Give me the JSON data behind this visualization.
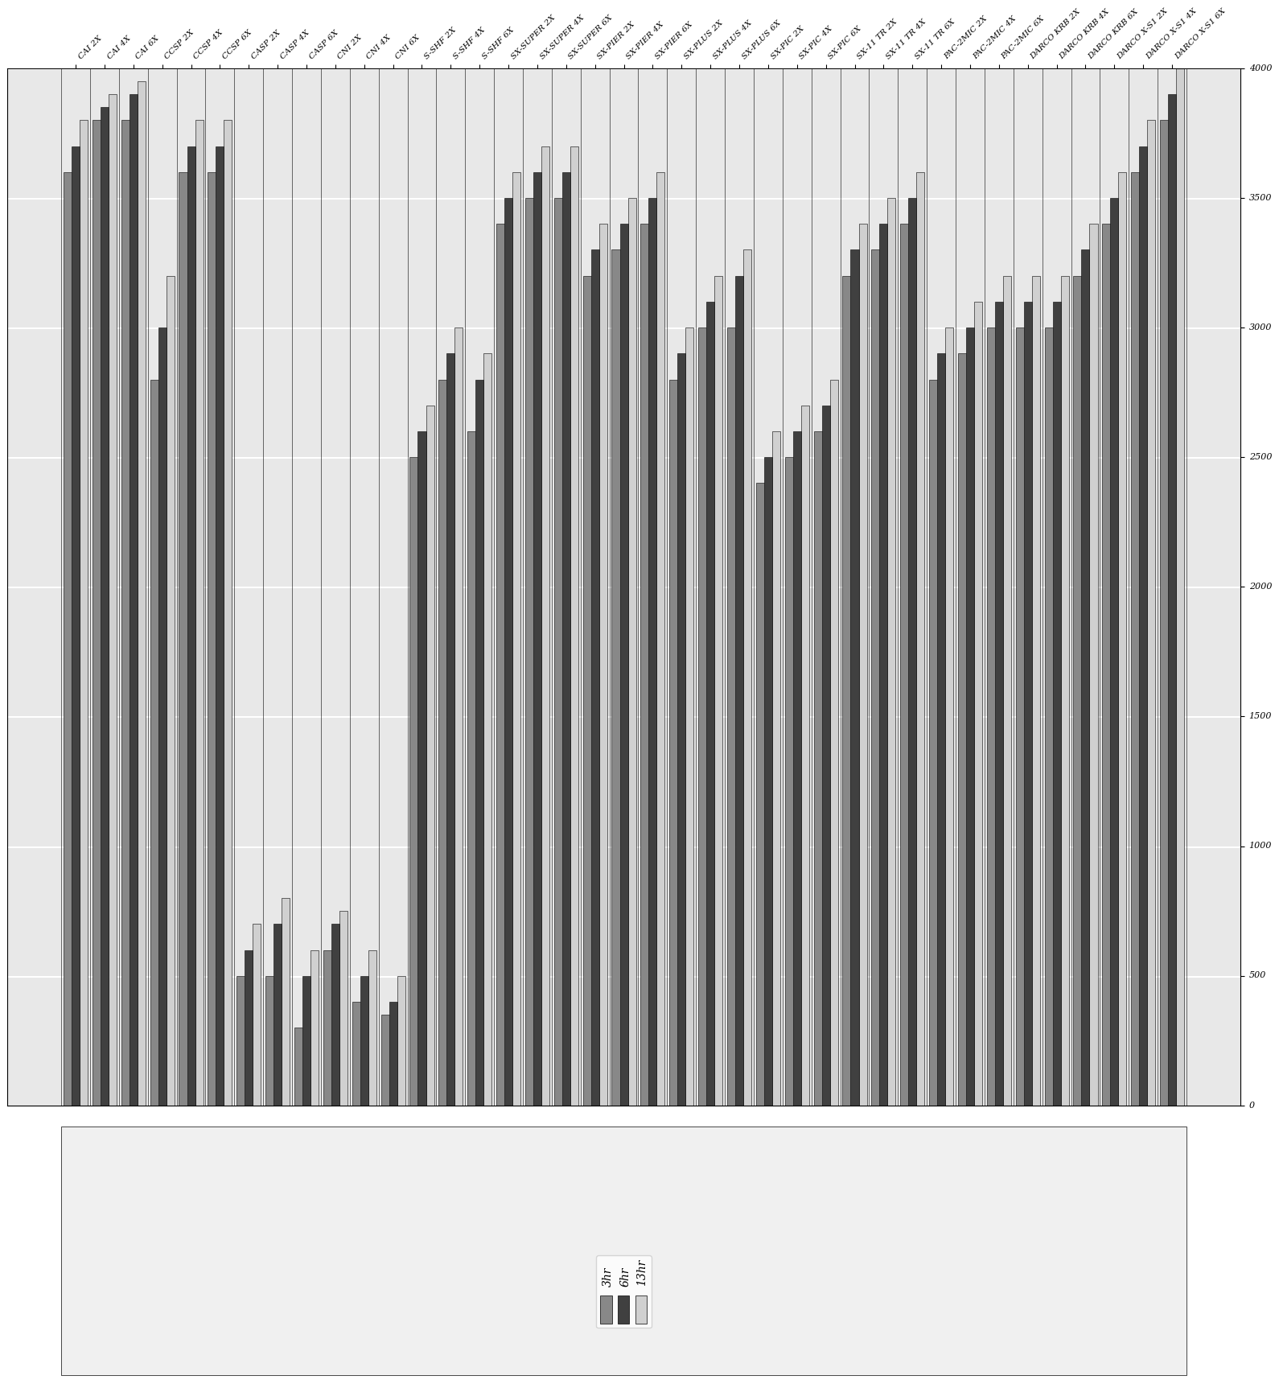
{
  "categories": [
    "CAI 2X",
    "CAI 4X",
    "CAI 6X",
    "CCSP 2X",
    "CCSP 4X",
    "CCSP 6X",
    "CASP 2X",
    "CASP 4X",
    "CASP 6X",
    "CNI 2X",
    "CNI 4X",
    "CNI 6X",
    "S-SHF 2X",
    "S-SHF 4X",
    "S-SHF 6X",
    "SX-SUPER 2X",
    "SX-SUPER 4X",
    "SX-SUPER 6X",
    "SX-PIER 2X",
    "SX-PIER 4X",
    "SX-PIER 6X",
    "SX-PLUS 2X",
    "SX-PLUS 4X",
    "SX-PLUS 6X",
    "SX-PIC 2X",
    "SX-PIC 4X",
    "SX-PIC 6X",
    "SX-11 TR 2X",
    "SX-11 TR 4X",
    "SX-11 TR 6X",
    "PAC-2MIC 2X",
    "PAC-2MIC 4X",
    "PAC-2MIC 6X",
    "DARCO KRB 2X",
    "DARCO KRB 4X",
    "DARCO KRB 6X",
    "DARCO X-S1 2X",
    "DARCO X-S1 4X",
    "DARCO X-S1 6X"
  ],
  "values_3hr": [
    3600,
    3800,
    3800,
    2800,
    3600,
    3600,
    500,
    500,
    300,
    600,
    400,
    350,
    2500,
    2800,
    2600,
    3400,
    3500,
    3500,
    3200,
    3300,
    3400,
    2800,
    3000,
    3000,
    2400,
    2500,
    2600,
    3200,
    3300,
    3400,
    2800,
    2900,
    3000,
    3000,
    3000,
    3200,
    3400,
    3600,
    3800
  ],
  "values_6hr": [
    3700,
    3850,
    3900,
    3000,
    3700,
    3700,
    600,
    700,
    500,
    700,
    500,
    400,
    2600,
    2900,
    2800,
    3500,
    3600,
    3600,
    3300,
    3400,
    3500,
    2900,
    3100,
    3200,
    2500,
    2600,
    2700,
    3300,
    3400,
    3500,
    2900,
    3000,
    3100,
    3100,
    3100,
    3300,
    3500,
    3700,
    3900
  ],
  "values_13hr": [
    3800,
    3900,
    3950,
    3200,
    3800,
    3800,
    700,
    800,
    600,
    750,
    600,
    500,
    2700,
    3000,
    2900,
    3600,
    3700,
    3700,
    3400,
    3500,
    3600,
    3000,
    3200,
    3300,
    2600,
    2700,
    2800,
    3400,
    3500,
    3600,
    3000,
    3100,
    3200,
    3200,
    3200,
    3400,
    3600,
    3800,
    4000
  ],
  "color_3hr": "#888888",
  "color_6hr": "#404040",
  "color_13hr": "#d0d0d0",
  "legend_labels": [
    "3hr",
    "6hr",
    "13hr"
  ],
  "xlim": [
    0,
    4000
  ],
  "xticks": [
    0,
    500,
    1000,
    1500,
    2000,
    2500,
    3000,
    3500,
    4000
  ],
  "bar_height": 0.28,
  "figure_width": 25.78,
  "figure_height": 16.84,
  "rotate_output": true
}
